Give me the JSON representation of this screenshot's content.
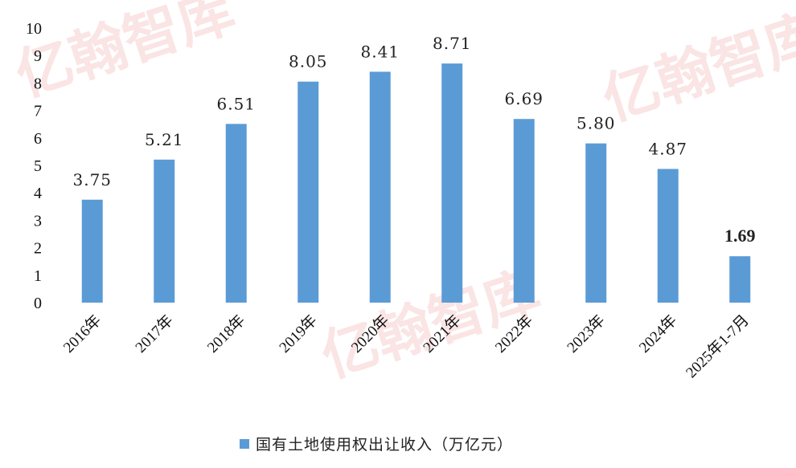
{
  "watermark_text": "亿翰智库",
  "chart_data": {
    "type": "bar",
    "categories": [
      "2016年",
      "2017年",
      "2018年",
      "2019年",
      "2020年",
      "2021年",
      "2022年",
      "2023年",
      "2024年",
      "2025年1-7月"
    ],
    "series": [
      {
        "name": "国有土地使用权出让收入（万亿元）",
        "values": [
          3.75,
          5.21,
          6.51,
          8.05,
          8.41,
          8.71,
          6.69,
          5.8,
          4.87,
          1.69
        ],
        "labels": [
          "3.75",
          "5.21",
          "6.51",
          "8.05",
          "8.41",
          "8.71",
          "6.69",
          "5.80",
          "4.87",
          "1.69"
        ],
        "color": "#5b9bd5"
      }
    ],
    "yticks": [
      "0",
      "1",
      "2",
      "3",
      "4",
      "5",
      "6",
      "7",
      "8",
      "9",
      "10"
    ],
    "ylim": [
      0,
      10
    ],
    "grid": false,
    "legend_position": "bottom",
    "highlighted_label_index": 9
  }
}
